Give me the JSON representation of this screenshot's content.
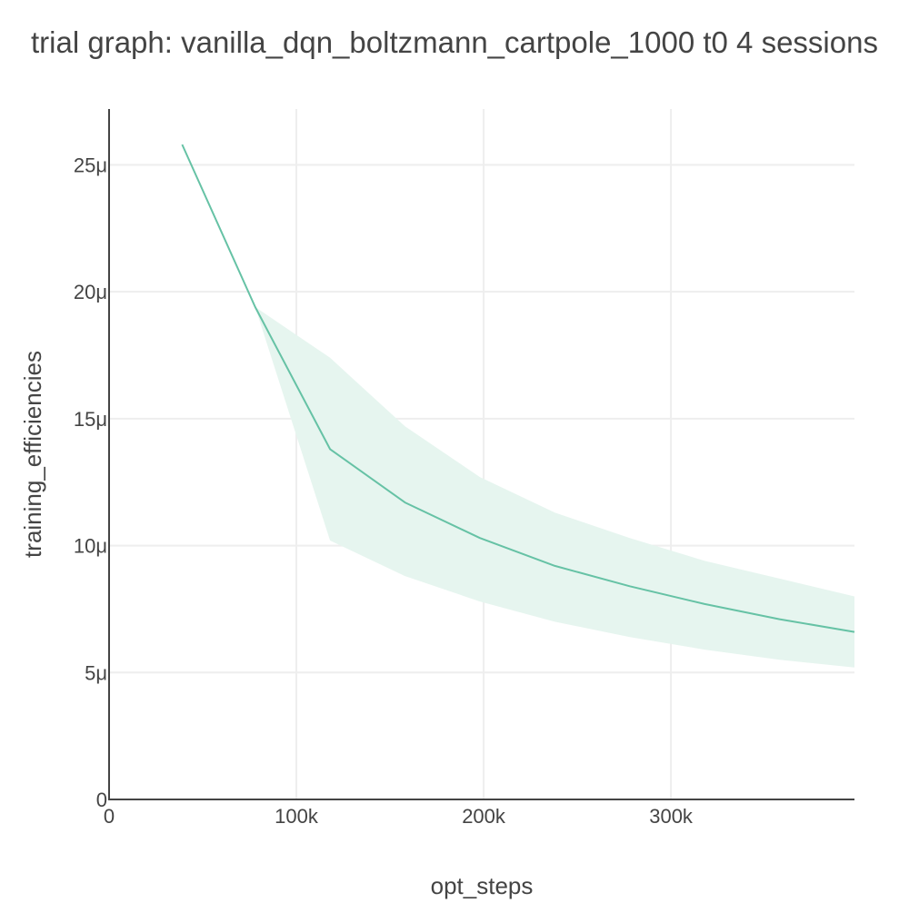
{
  "chart_data": {
    "type": "line",
    "title": "trial graph: vanilla_dqn_boltzmann_cartpole_1000 t0 4 sessions",
    "xlabel": "opt_steps",
    "ylabel": "training_efficiencies",
    "xlim": [
      0,
      398000
    ],
    "ylim": [
      0,
      2.72e-05
    ],
    "x_ticks": [
      {
        "value": 0,
        "label": "0"
      },
      {
        "value": 100000,
        "label": "100k"
      },
      {
        "value": 200000,
        "label": "200k"
      },
      {
        "value": 300000,
        "label": "300k"
      }
    ],
    "y_ticks": [
      {
        "value": 0,
        "label": "0"
      },
      {
        "value": 5e-06,
        "label": "5μ"
      },
      {
        "value": 1e-05,
        "label": "10μ"
      },
      {
        "value": 1.5e-05,
        "label": "15μ"
      },
      {
        "value": 2e-05,
        "label": "20μ"
      },
      {
        "value": 2.5e-05,
        "label": "25μ"
      }
    ],
    "grid": true,
    "legend": "none",
    "colors": {
      "line": "#66c2a5",
      "band": "#e6f5ef",
      "grid": "#eeeeee",
      "axis": "#444444"
    },
    "series": [
      {
        "x": [
          39000,
          78000,
          118000,
          158000,
          198000,
          238000,
          278000,
          318000,
          358000,
          398000
        ],
        "mean": [
          2.58e-05,
          1.94e-05,
          1.38e-05,
          1.17e-05,
          1.03e-05,
          9.2e-06,
          8.4e-06,
          7.7e-06,
          7.1e-06,
          6.6e-06
        ],
        "upper": [
          2.58e-05,
          1.94e-05,
          1.74e-05,
          1.47e-05,
          1.27e-05,
          1.13e-05,
          1.03e-05,
          9.4e-06,
          8.7e-06,
          8e-06
        ],
        "lower": [
          2.58e-05,
          1.94e-05,
          1.02e-05,
          8.8e-06,
          7.8e-06,
          7e-06,
          6.4e-06,
          5.9e-06,
          5.5e-06,
          5.2e-06
        ]
      }
    ]
  }
}
